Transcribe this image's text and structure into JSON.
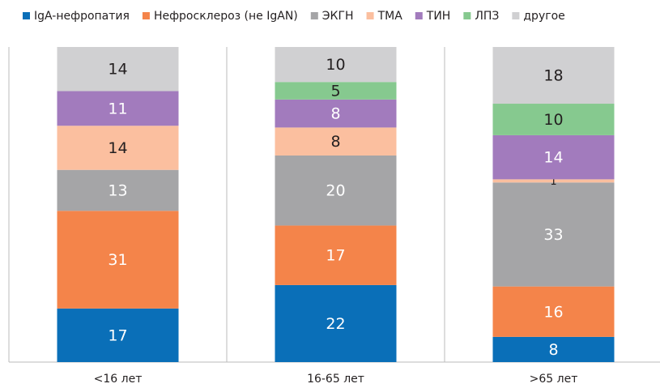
{
  "chart_data": {
    "type": "bar",
    "stacked": "percent",
    "categories": [
      "<16 лет",
      "16-65 лет",
      ">65 лет"
    ],
    "series": [
      {
        "name": "IgA-нефропатия",
        "color": "#0a6fb8",
        "label_color": "#ffffff",
        "values": [
          17,
          22,
          8
        ]
      },
      {
        "name": "Нефросклероз (не IgAN)",
        "color": "#f4844a",
        "label_color": "#ffffff",
        "values": [
          31,
          17,
          16
        ]
      },
      {
        "name": "ЭКГН",
        "color": "#a5a5a7",
        "label_color": "#ffffff",
        "values": [
          13,
          20,
          33
        ]
      },
      {
        "name": "ТМА",
        "color": "#fbbf9f",
        "label_color": "#231f20",
        "values": [
          14,
          8,
          1
        ]
      },
      {
        "name": "ТИН",
        "color": "#a27bbd",
        "label_color": "#ffffff",
        "values": [
          11,
          8,
          14
        ]
      },
      {
        "name": "ЛПЗ",
        "color": "#86c98f",
        "label_color": "#231f20",
        "values": [
          null,
          5,
          10
        ]
      },
      {
        "name": "другое",
        "color": "#d0d0d2",
        "label_color": "#231f20",
        "values": [
          14,
          10,
          18
        ]
      }
    ],
    "legend": "top"
  }
}
